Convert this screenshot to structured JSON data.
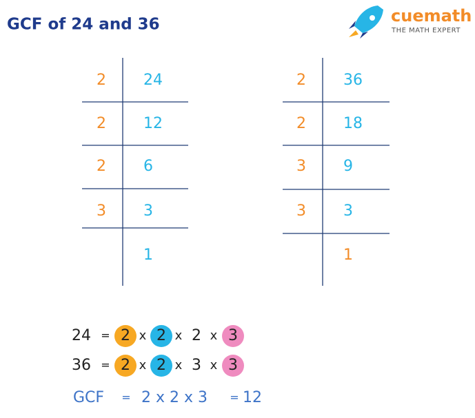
{
  "header": {
    "title": "GCF of 24 and 36",
    "brand": "cuemath",
    "tagline": "THE MATH EXPERT"
  },
  "colors": {
    "divisor": "#f28c28",
    "dividend": "#27b5e6",
    "highlight": [
      "#f7a823",
      "#27b5e6",
      "#ef8bbf"
    ]
  },
  "tables": [
    {
      "divisors": [
        2,
        2,
        2,
        3
      ],
      "dividends": [
        24,
        12,
        6,
        3,
        1
      ],
      "dividend_colors": [
        "#27b5e6",
        "#27b5e6",
        "#27b5e6",
        "#27b5e6",
        "#27b5e6"
      ]
    },
    {
      "divisors": [
        2,
        2,
        3,
        3
      ],
      "dividends": [
        36,
        18,
        9,
        3,
        1
      ],
      "dividend_colors": [
        "#27b5e6",
        "#27b5e6",
        "#27b5e6",
        "#27b5e6",
        "#f28c28"
      ]
    }
  ],
  "equations": [
    {
      "lhs": "24",
      "eq": "=",
      "times": "x",
      "factors": [
        "2",
        "2",
        "2",
        "3"
      ],
      "highlighted": [
        true,
        true,
        false,
        true
      ]
    },
    {
      "lhs": "36",
      "eq": "=",
      "times": "x",
      "factors": [
        "2",
        "2",
        "3",
        "3"
      ],
      "highlighted": [
        true,
        true,
        false,
        true
      ]
    }
  ],
  "result": {
    "label": "GCF",
    "eq": "=",
    "product": "2 x 2 x 3",
    "eq2": "=",
    "value": "12"
  }
}
